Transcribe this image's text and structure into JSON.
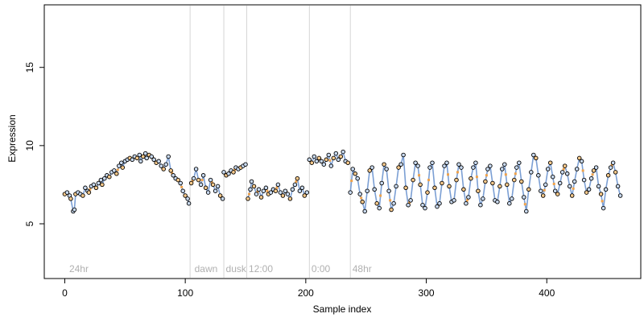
{
  "chart_data": {
    "type": "scatter",
    "title": "",
    "xlabel": "Sample index",
    "ylabel": "Expression",
    "xlim": [
      -17,
      478
    ],
    "ylim": [
      1.5,
      19.0
    ],
    "x_ticks": [
      0,
      100,
      200,
      300,
      400
    ],
    "y_ticks": [
      5,
      10,
      15
    ],
    "grid": false,
    "legend": null,
    "region_dividers": [
      104,
      132,
      151,
      203,
      237
    ],
    "region_labels": [
      {
        "x": 3,
        "label": "24hr"
      },
      {
        "x": 107,
        "label": "dawn"
      },
      {
        "x": 133,
        "label": "dusk"
      },
      {
        "x": 152,
        "label": "12:00"
      },
      {
        "x": 204,
        "label": "0:00"
      },
      {
        "x": 238,
        "label": "48hr"
      }
    ],
    "colors": {
      "fit_line": "#7b9fd4",
      "segment": "#f0a24a",
      "point_blue": "#c9daf0",
      "point_orange": "#f7c98b",
      "divider": "#d6d6d6"
    },
    "series": [
      {
        "values": [
          [
            0,
            6.9
          ],
          [
            2,
            7.0
          ],
          [
            4,
            6.8
          ],
          [
            5,
            6.6
          ],
          [
            7,
            5.8
          ],
          [
            8,
            5.9
          ],
          [
            9,
            6.9
          ],
          [
            11,
            7.0
          ],
          [
            13,
            6.9
          ],
          [
            15,
            6.8
          ],
          [
            17,
            7.3
          ],
          [
            19,
            7.1
          ],
          [
            20,
            7.0
          ],
          [
            22,
            7.4
          ],
          [
            24,
            7.5
          ],
          [
            26,
            7.3
          ],
          [
            28,
            7.6
          ],
          [
            30,
            7.8
          ],
          [
            31,
            7.5
          ],
          [
            33,
            7.9
          ],
          [
            35,
            8.1
          ],
          [
            37,
            8.0
          ],
          [
            39,
            8.3
          ],
          [
            41,
            8.4
          ],
          [
            43,
            8.2
          ],
          [
            45,
            8.7
          ],
          [
            47,
            8.9
          ],
          [
            48,
            8.6
          ],
          [
            50,
            9.0
          ],
          [
            52,
            9.1
          ],
          [
            54,
            9.2
          ],
          [
            56,
            9.1
          ],
          [
            58,
            9.3
          ],
          [
            60,
            9.2
          ],
          [
            62,
            9.4
          ],
          [
            63,
            9.0
          ],
          [
            65,
            9.3
          ],
          [
            67,
            9.5
          ],
          [
            68,
            9.2
          ],
          [
            70,
            9.4
          ],
          [
            72,
            9.3
          ],
          [
            74,
            9.1
          ],
          [
            76,
            8.9
          ],
          [
            78,
            9.0
          ],
          [
            80,
            8.7
          ],
          [
            82,
            8.5
          ],
          [
            84,
            8.8
          ],
          [
            86,
            9.3
          ],
          [
            88,
            8.4
          ],
          [
            90,
            8.1
          ],
          [
            92,
            7.9
          ],
          [
            94,
            7.8
          ],
          [
            96,
            7.6
          ],
          [
            98,
            7.1
          ],
          [
            100,
            6.8
          ],
          [
            102,
            6.6
          ],
          [
            103,
            6.3
          ],
          [
            105,
            7.6
          ],
          [
            107,
            7.9
          ],
          [
            109,
            8.5
          ],
          [
            111,
            7.8
          ],
          [
            113,
            7.5
          ],
          [
            115,
            8.1
          ],
          [
            117,
            7.3
          ],
          [
            119,
            7.0
          ],
          [
            121,
            7.8
          ],
          [
            123,
            7.5
          ],
          [
            125,
            7.1
          ],
          [
            127,
            7.4
          ],
          [
            129,
            6.8
          ],
          [
            131,
            6.6
          ],
          [
            132,
            8.3
          ],
          [
            134,
            8.1
          ],
          [
            136,
            8.2
          ],
          [
            138,
            8.4
          ],
          [
            140,
            8.3
          ],
          [
            142,
            8.6
          ],
          [
            144,
            8.5
          ],
          [
            146,
            8.6
          ],
          [
            148,
            8.7
          ],
          [
            150,
            8.8
          ],
          [
            152,
            6.6
          ],
          [
            154,
            7.2
          ],
          [
            155,
            7.7
          ],
          [
            157,
            7.4
          ],
          [
            159,
            6.9
          ],
          [
            161,
            7.2
          ],
          [
            163,
            6.7
          ],
          [
            165,
            7.1
          ],
          [
            167,
            7.3
          ],
          [
            169,
            6.9
          ],
          [
            171,
            7.0
          ],
          [
            173,
            7.2
          ],
          [
            175,
            7.1
          ],
          [
            177,
            7.5
          ],
          [
            179,
            7.0
          ],
          [
            181,
            6.8
          ],
          [
            183,
            7.1
          ],
          [
            185,
            6.9
          ],
          [
            187,
            6.6
          ],
          [
            189,
            7.2
          ],
          [
            191,
            7.5
          ],
          [
            193,
            7.9
          ],
          [
            195,
            7.1
          ],
          [
            197,
            7.3
          ],
          [
            199,
            6.8
          ],
          [
            201,
            7.0
          ],
          [
            203,
            9.1
          ],
          [
            205,
            8.9
          ],
          [
            207,
            9.3
          ],
          [
            209,
            9.0
          ],
          [
            211,
            9.2
          ],
          [
            213,
            9.0
          ],
          [
            215,
            8.8
          ],
          [
            217,
            9.1
          ],
          [
            219,
            9.4
          ],
          [
            221,
            8.7
          ],
          [
            223,
            9.2
          ],
          [
            225,
            9.5
          ],
          [
            227,
            9.1
          ],
          [
            229,
            9.3
          ],
          [
            231,
            9.6
          ],
          [
            233,
            9.0
          ],
          [
            235,
            8.9
          ],
          [
            237,
            7.0
          ],
          [
            239,
            8.5
          ],
          [
            241,
            8.2
          ],
          [
            243,
            7.9
          ],
          [
            245,
            6.9
          ],
          [
            247,
            6.4
          ],
          [
            249,
            5.8
          ],
          [
            251,
            7.1
          ],
          [
            253,
            8.4
          ],
          [
            255,
            8.6
          ],
          [
            257,
            7.2
          ],
          [
            259,
            6.3
          ],
          [
            261,
            6.0
          ],
          [
            263,
            7.6
          ],
          [
            265,
            8.8
          ],
          [
            267,
            8.5
          ],
          [
            269,
            7.1
          ],
          [
            271,
            5.9
          ],
          [
            273,
            6.3
          ],
          [
            275,
            7.4
          ],
          [
            277,
            8.6
          ],
          [
            279,
            8.8
          ],
          [
            281,
            9.4
          ],
          [
            283,
            7.3
          ],
          [
            285,
            6.2
          ],
          [
            287,
            6.5
          ],
          [
            289,
            7.8
          ],
          [
            291,
            8.9
          ],
          [
            293,
            8.7
          ],
          [
            295,
            7.5
          ],
          [
            297,
            6.2
          ],
          [
            299,
            6.0
          ],
          [
            301,
            7.0
          ],
          [
            303,
            8.6
          ],
          [
            305,
            8.9
          ],
          [
            307,
            7.3
          ],
          [
            309,
            6.1
          ],
          [
            311,
            6.3
          ],
          [
            313,
            7.6
          ],
          [
            315,
            8.7
          ],
          [
            317,
            8.9
          ],
          [
            319,
            7.4
          ],
          [
            321,
            6.4
          ],
          [
            323,
            6.5
          ],
          [
            325,
            7.8
          ],
          [
            327,
            8.8
          ],
          [
            329,
            8.6
          ],
          [
            331,
            7.2
          ],
          [
            333,
            6.3
          ],
          [
            335,
            6.7
          ],
          [
            337,
            7.9
          ],
          [
            339,
            8.6
          ],
          [
            341,
            8.9
          ],
          [
            343,
            7.1
          ],
          [
            345,
            6.2
          ],
          [
            347,
            6.6
          ],
          [
            349,
            7.7
          ],
          [
            351,
            8.5
          ],
          [
            353,
            8.7
          ],
          [
            355,
            7.6
          ],
          [
            357,
            6.5
          ],
          [
            359,
            6.4
          ],
          [
            361,
            7.4
          ],
          [
            363,
            8.5
          ],
          [
            365,
            8.8
          ],
          [
            367,
            7.5
          ],
          [
            369,
            6.3
          ],
          [
            371,
            6.6
          ],
          [
            373,
            7.8
          ],
          [
            375,
            8.6
          ],
          [
            377,
            8.9
          ],
          [
            379,
            7.7
          ],
          [
            381,
            6.7
          ],
          [
            383,
            5.8
          ],
          [
            385,
            7.2
          ],
          [
            387,
            8.3
          ],
          [
            389,
            9.4
          ],
          [
            391,
            9.2
          ],
          [
            393,
            8.1
          ],
          [
            395,
            7.1
          ],
          [
            397,
            6.8
          ],
          [
            399,
            7.5
          ],
          [
            401,
            8.5
          ],
          [
            403,
            8.9
          ],
          [
            405,
            8.0
          ],
          [
            407,
            7.1
          ],
          [
            409,
            6.9
          ],
          [
            411,
            7.6
          ],
          [
            413,
            8.3
          ],
          [
            415,
            8.7
          ],
          [
            417,
            8.2
          ],
          [
            419,
            7.4
          ],
          [
            421,
            6.8
          ],
          [
            423,
            7.7
          ],
          [
            425,
            8.5
          ],
          [
            427,
            9.2
          ],
          [
            429,
            9.0
          ],
          [
            431,
            7.8
          ],
          [
            433,
            7.0
          ],
          [
            435,
            7.2
          ],
          [
            437,
            7.9
          ],
          [
            439,
            8.4
          ],
          [
            441,
            8.6
          ],
          [
            443,
            7.4
          ],
          [
            445,
            6.9
          ],
          [
            447,
            6.0
          ],
          [
            449,
            7.2
          ],
          [
            451,
            8.1
          ],
          [
            453,
            8.6
          ],
          [
            455,
            8.9
          ],
          [
            457,
            8.3
          ],
          [
            459,
            7.4
          ],
          [
            461,
            6.8
          ]
        ]
      }
    ]
  }
}
